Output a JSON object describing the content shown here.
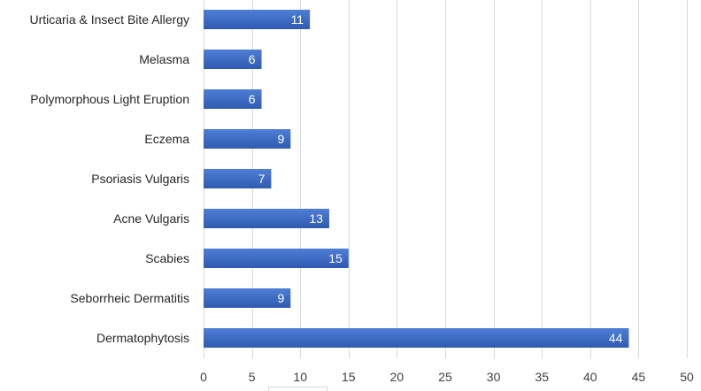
{
  "chart_data": {
    "type": "bar",
    "orientation": "horizontal",
    "title": "",
    "xlabel": "",
    "ylabel": "",
    "categories": [
      "Urticaria & Insect Bite Allergy",
      "Melasma",
      "Polymorphous Light Eruption",
      "Eczema",
      "Psoriasis Vulgaris",
      "Acne Vulgaris",
      "Scabies",
      "Seborrheic Dermatitis",
      "Dermatophytosis"
    ],
    "values": [
      11,
      6,
      6,
      9,
      7,
      13,
      15,
      9,
      44
    ],
    "xlim": [
      0,
      50
    ],
    "xticks": [
      0,
      5,
      10,
      15,
      20,
      25,
      30,
      35,
      40,
      45,
      50
    ],
    "grid": "vertical",
    "data_labels": "inside-end",
    "colors": {
      "bar_fill": "#4472C4",
      "bar_fill_dark": "#2F5597",
      "gridline": "#D9D9D9",
      "label_text": "#262626",
      "data_label_text": "#FFFFFF"
    }
  }
}
